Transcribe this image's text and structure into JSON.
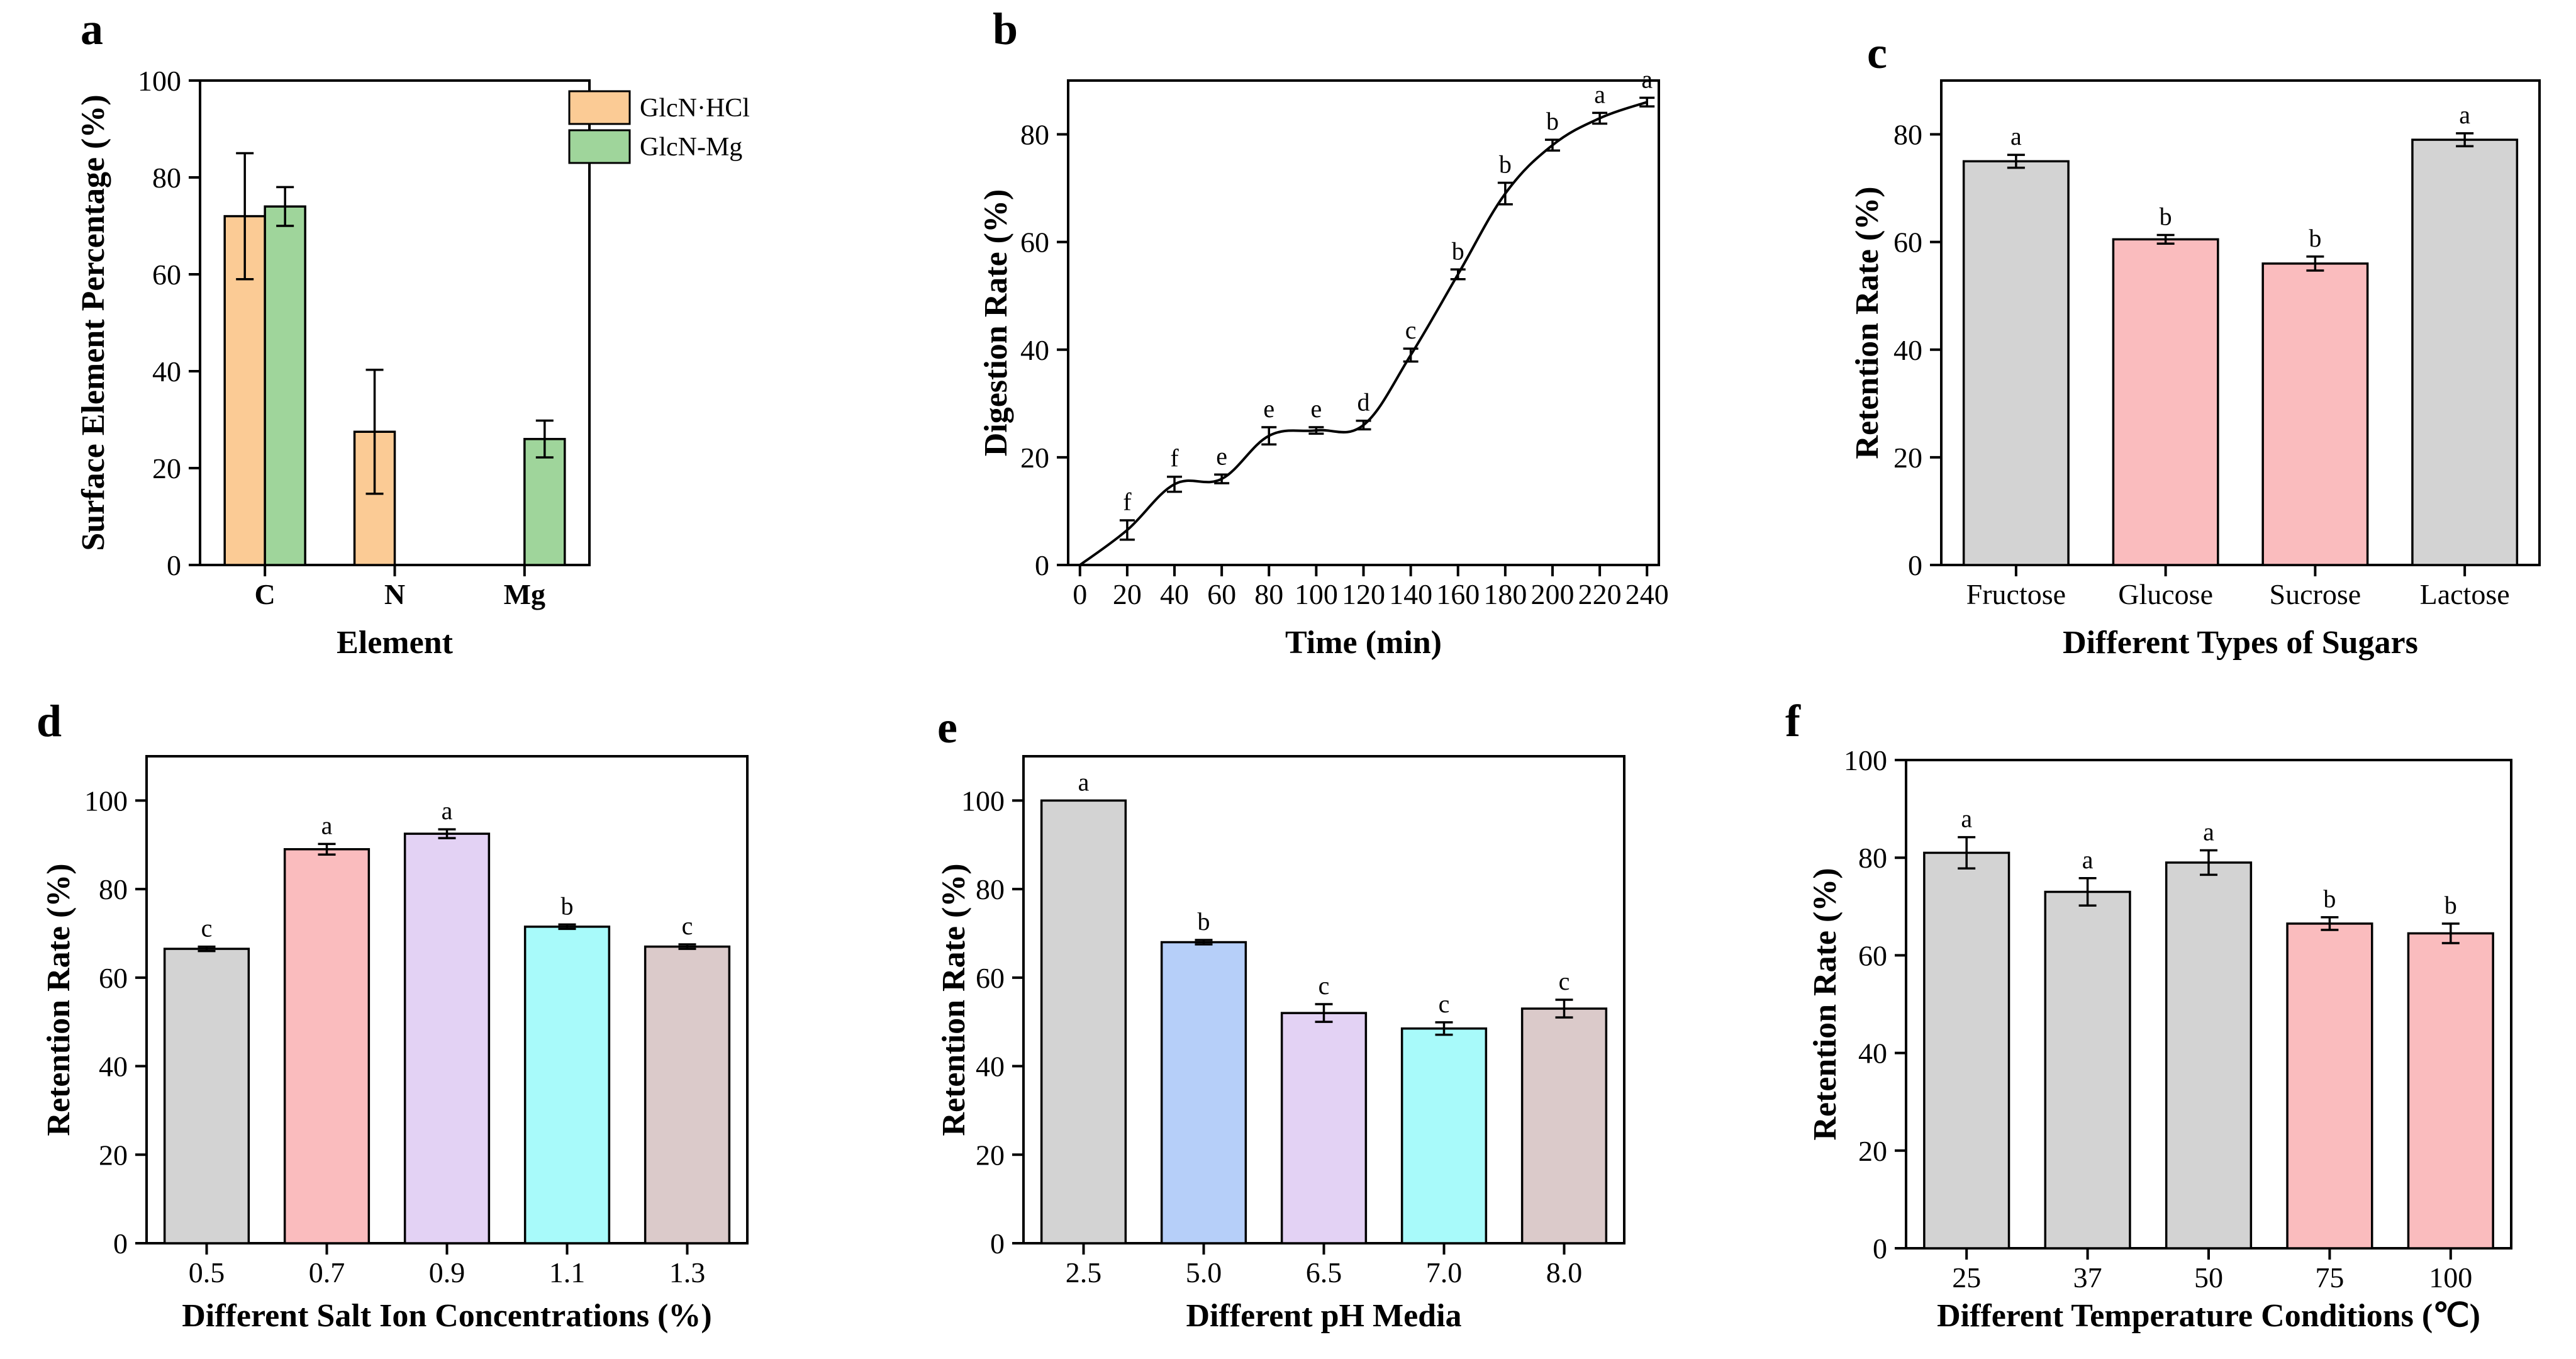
{
  "chart_data": [
    {
      "id": "a",
      "panel_label": "a",
      "type": "bar",
      "xlabel": "Element",
      "ylabel": "Surface Element Percentage (%)",
      "ylim": [
        0,
        100
      ],
      "yticks": [
        0,
        20,
        40,
        60,
        80,
        100
      ],
      "categories": [
        "C",
        "N",
        "Mg"
      ],
      "series": [
        {
          "name": "GlcN·HCl",
          "color": "#fbcb95",
          "values": [
            72,
            27.5,
            null
          ],
          "errors": [
            13,
            12.8,
            null
          ]
        },
        {
          "name": "GlcN-Mg",
          "color": "#9fd59b",
          "values": [
            74,
            null,
            26
          ],
          "errors": [
            4,
            null,
            3.8
          ]
        }
      ]
    },
    {
      "id": "b",
      "panel_label": "b",
      "type": "line",
      "xlabel": "Time (min)",
      "ylabel": "Digestion Rate (%)",
      "xlim": [
        0,
        240
      ],
      "ylim": [
        0,
        90
      ],
      "xticks": [
        0,
        20,
        40,
        60,
        80,
        100,
        120,
        140,
        160,
        180,
        200,
        220,
        240
      ],
      "yticks": [
        0,
        20,
        40,
        60,
        80
      ],
      "x": [
        0,
        20,
        40,
        60,
        80,
        100,
        120,
        140,
        160,
        180,
        200,
        220,
        240
      ],
      "y": [
        0,
        6.5,
        15,
        16,
        24,
        25,
        26,
        39,
        54,
        69,
        78,
        83,
        86
      ],
      "errors": [
        0,
        1.8,
        1.4,
        0.8,
        1.6,
        0.6,
        0.8,
        1.2,
        0.9,
        2.0,
        1.0,
        1.0,
        0.8
      ],
      "sig": [
        "",
        "f",
        "f",
        "e",
        "e",
        "e",
        "d",
        "c",
        "b",
        "b",
        "b",
        "a",
        "a"
      ]
    },
    {
      "id": "c",
      "panel_label": "c",
      "type": "bar",
      "xlabel": "Different Types of  Sugars",
      "ylabel": "Retention Rate (%)",
      "ylim": [
        0,
        90
      ],
      "yticks": [
        0,
        20,
        40,
        60,
        80
      ],
      "categories": [
        "Fructose",
        "Glucose",
        "Sucrose",
        "Lactose"
      ],
      "values": [
        75,
        60.5,
        56,
        79
      ],
      "errors": [
        1.2,
        0.8,
        1.3,
        1.2
      ],
      "colors": [
        "#d3d3d3",
        "#fabcbe",
        "#fabcbe",
        "#d3d3d3"
      ],
      "sig": [
        "a",
        "b",
        "b",
        "a"
      ]
    },
    {
      "id": "d",
      "panel_label": "d",
      "type": "bar",
      "xlabel": "Different Salt Ion Concentrations (%)",
      "ylabel": "Retention Rate (%)",
      "ylim": [
        0,
        110
      ],
      "yticks": [
        0,
        20,
        40,
        60,
        80,
        100
      ],
      "categories": [
        "0.5",
        "0.7",
        "0.9",
        "1.1",
        "1.3"
      ],
      "values": [
        66.5,
        89,
        92.5,
        71.5,
        67
      ],
      "errors": [
        0.5,
        1.2,
        1.0,
        0.5,
        0.5
      ],
      "colors": [
        "#d3d3d3",
        "#fabcbe",
        "#e3d2f4",
        "#a8fafa",
        "#dbcaca"
      ],
      "sig": [
        "c",
        "a",
        "a",
        "b",
        "c"
      ]
    },
    {
      "id": "e",
      "panel_label": "e",
      "type": "bar",
      "xlabel": "Different  pH  Media",
      "ylabel": "Retention Rate (%)",
      "ylim": [
        0,
        110
      ],
      "yticks": [
        0,
        20,
        40,
        60,
        80,
        100
      ],
      "categories": [
        "2.5",
        "5.0",
        "6.5",
        "7.0",
        "8.0"
      ],
      "values": [
        100,
        68,
        52,
        48.5,
        53
      ],
      "errors": [
        0,
        0.5,
        2.0,
        1.4,
        2.0
      ],
      "colors": [
        "#d3d3d3",
        "#b6cff9",
        "#e3d2f4",
        "#a8fafa",
        "#dbcaca"
      ],
      "sig": [
        "a",
        "b",
        "c",
        "c",
        "c"
      ]
    },
    {
      "id": "f",
      "panel_label": "f",
      "type": "bar",
      "xlabel": "Different Temperature Conditions (℃)",
      "ylabel": "Retention Rate (%)",
      "ylim": [
        0,
        100
      ],
      "yticks": [
        0,
        20,
        40,
        60,
        80,
        100
      ],
      "categories": [
        "25",
        "37",
        "50",
        "75",
        "100"
      ],
      "values": [
        81,
        73,
        79,
        66.5,
        64.5
      ],
      "errors": [
        3.2,
        2.8,
        2.5,
        1.3,
        2.0
      ],
      "colors": [
        "#d3d3d3",
        "#d3d3d3",
        "#d3d3d3",
        "#fabcbe",
        "#fabcbe"
      ],
      "sig": [
        "a",
        "a",
        "a",
        "b",
        "b"
      ]
    }
  ]
}
